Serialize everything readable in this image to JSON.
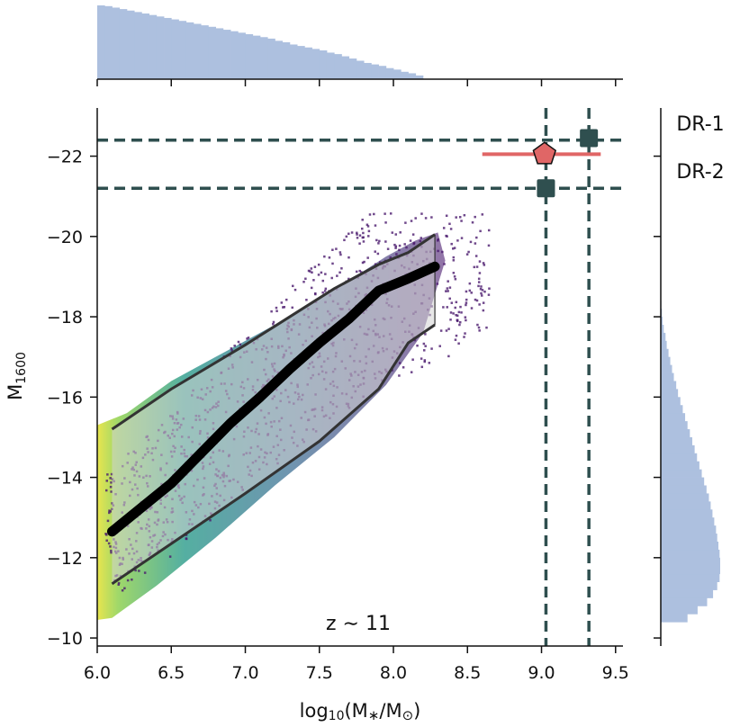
{
  "chart_data": {
    "type": "scatter",
    "xlabel_main": "log",
    "xlabel_sub": "10",
    "xlabel_rest": "(M",
    "xlabel_star": "∗",
    "xlabel_slash": "/M",
    "xlabel_sun": "⊙",
    "xlabel_close": ")",
    "ylabel_main": "M",
    "ylabel_sub": "1600",
    "xlim": [
      6.0,
      9.55
    ],
    "ylim": [
      -9.8,
      -23.2
    ],
    "y_inverted": true,
    "xticks": [
      6.0,
      6.5,
      7.0,
      7.5,
      8.0,
      8.5,
      9.0,
      9.5
    ],
    "xtick_labels": [
      "6.0",
      "6.5",
      "7.0",
      "7.5",
      "8.0",
      "8.5",
      "9.0",
      "9.5"
    ],
    "yticks": [
      -10,
      -12,
      -14,
      -16,
      -18,
      -20,
      -22
    ],
    "ytick_labels": [
      "−10",
      "−12",
      "−14",
      "−16",
      "−18",
      "−20",
      "−22"
    ],
    "annotation": "z ∼ 11",
    "grid": false,
    "median_line": {
      "x": [
        6.1,
        6.3,
        6.5,
        6.7,
        6.9,
        7.1,
        7.3,
        7.5,
        7.7,
        7.9,
        8.1,
        8.28
      ],
      "y": [
        -12.65,
        -13.25,
        -13.85,
        -14.6,
        -15.35,
        -16.0,
        -16.7,
        -17.35,
        -17.95,
        -18.65,
        -18.95,
        -19.25
      ]
    },
    "upper_envelope": {
      "x": [
        6.1,
        6.5,
        7.0,
        7.3,
        7.6,
        7.9,
        8.1,
        8.28
      ],
      "y": [
        -15.2,
        -16.2,
        -17.3,
        -18.0,
        -18.7,
        -19.3,
        -19.6,
        -20.05
      ]
    },
    "lower_envelope": {
      "x": [
        6.1,
        6.5,
        7.0,
        7.5,
        7.9,
        8.1,
        8.28
      ],
      "y": [
        -11.35,
        -12.35,
        -13.6,
        -14.9,
        -16.2,
        -17.35,
        -17.8
      ]
    },
    "hlines": [
      {
        "y": -22.4,
        "label": "DR-1"
      },
      {
        "y": -21.2,
        "label": "DR-2"
      }
    ],
    "vlines": [
      9.03,
      9.32
    ],
    "observed_points": [
      {
        "x": 9.03,
        "y": -21.2,
        "marker": "square",
        "color": "#2f4f4f"
      },
      {
        "x": 9.32,
        "y": -22.45,
        "marker": "square",
        "color": "#2f4f4f"
      }
    ],
    "pentagon_point": {
      "x": 9.02,
      "y": -22.05,
      "xerr_low": 8.6,
      "xerr_high": 9.4,
      "color": "#e06666"
    },
    "top_histogram": {
      "bins_start": 6.0,
      "bin_width": 0.05,
      "counts": [
        1.0,
        0.99,
        0.97,
        0.95,
        0.93,
        0.91,
        0.89,
        0.87,
        0.85,
        0.83,
        0.81,
        0.79,
        0.77,
        0.75,
        0.73,
        0.71,
        0.69,
        0.67,
        0.65,
        0.63,
        0.61,
        0.59,
        0.57,
        0.55,
        0.52,
        0.5,
        0.47,
        0.45,
        0.43,
        0.41,
        0.39,
        0.36,
        0.34,
        0.31,
        0.28,
        0.25,
        0.22,
        0.2,
        0.18,
        0.15,
        0.13,
        0.1,
        0.08,
        0.05
      ]
    },
    "right_histogram": {
      "bins_start": -10.4,
      "bin_width": -0.2,
      "counts": [
        0.45,
        0.62,
        0.78,
        0.88,
        0.95,
        0.99,
        1.0,
        1.0,
        0.99,
        0.97,
        0.95,
        0.93,
        0.9,
        0.87,
        0.84,
        0.81,
        0.77,
        0.73,
        0.69,
        0.65,
        0.61,
        0.57,
        0.53,
        0.49,
        0.45,
        0.41,
        0.37,
        0.33,
        0.29,
        0.26,
        0.22,
        0.19,
        0.16,
        0.13,
        0.1,
        0.08,
        0.05,
        0.03,
        0.02,
        0.01
      ]
    },
    "colors": {
      "hist": "#adc0df",
      "dashed": "#2f4f4f",
      "envelope_fill": "#d3d3d3",
      "median": "#000000",
      "envelope_line": "#333333",
      "scatter_low": "#4b1a6e",
      "scatter_mid": "#22998a",
      "scatter_high": "#e6e23a"
    }
  }
}
